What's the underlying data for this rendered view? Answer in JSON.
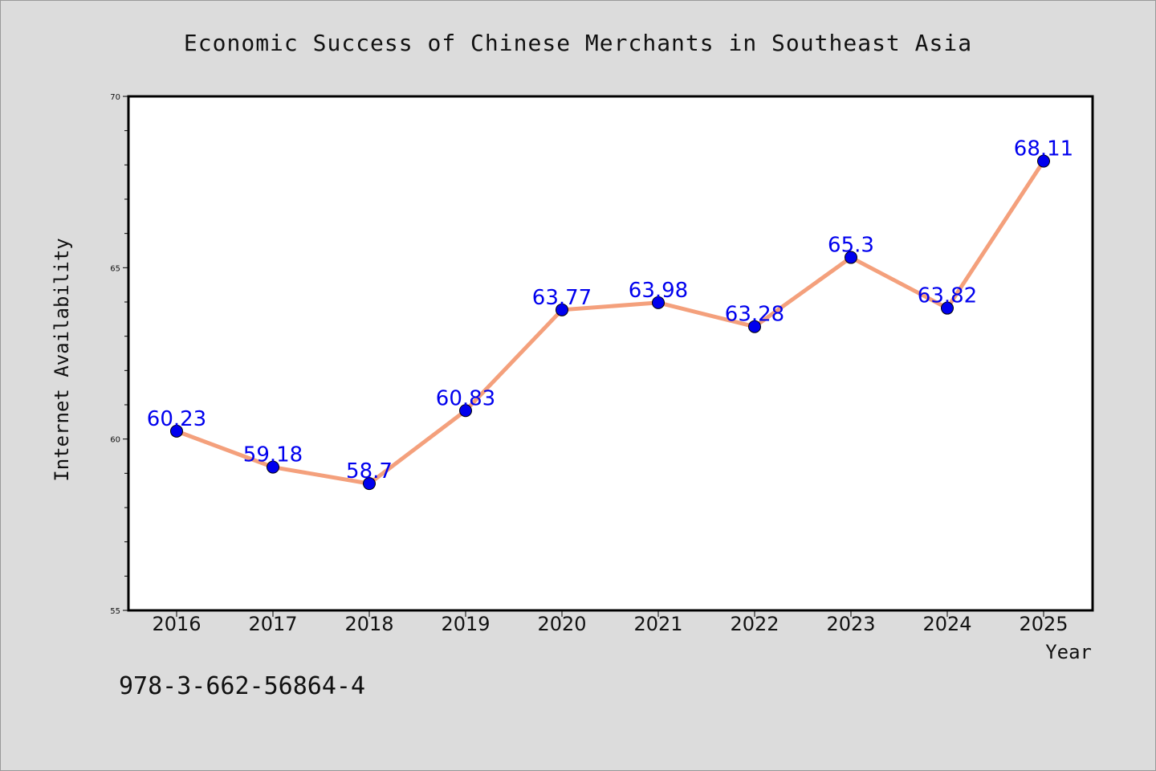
{
  "chart_data": {
    "type": "line",
    "title": "Economic Success of Chinese Merchants in Southeast Asia",
    "xlabel": "Year",
    "ylabel": "Internet Availability",
    "categories": [
      "2016",
      "2017",
      "2018",
      "2019",
      "2020",
      "2021",
      "2022",
      "2023",
      "2024",
      "2025"
    ],
    "series": [
      {
        "values": [
          60.23,
          59.18,
          58.7,
          60.83,
          63.77,
          63.98,
          63.28,
          65.3,
          63.82,
          68.11
        ],
        "data_labels": [
          "60.23",
          "59.18",
          "58.7",
          "60.83",
          "63.77",
          "63.98",
          "63.28",
          "65.3",
          "63.82",
          "68.11"
        ]
      }
    ],
    "ylim": [
      55,
      70
    ],
    "yticks": [
      "55",
      "60",
      "65",
      "70"
    ],
    "grid": false,
    "colors": {
      "line": "#f4a07c",
      "marker": "#0000ee",
      "label": "#0000ee"
    }
  },
  "footer": {
    "isbn": "978-3-662-56864-4"
  }
}
